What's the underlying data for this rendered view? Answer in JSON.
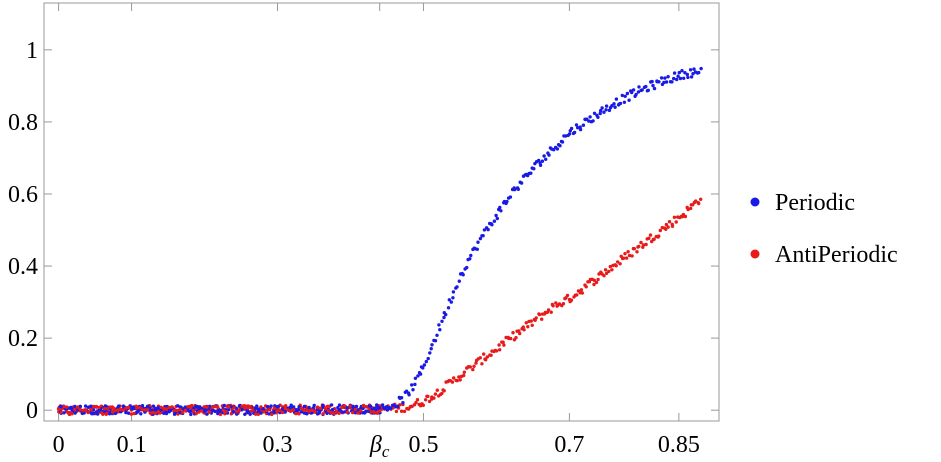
{
  "chart_data": {
    "type": "scatter",
    "title": "",
    "xlabel": "",
    "ylabel": "",
    "xlim": [
      -0.02,
      0.905
    ],
    "ylim": [
      -0.03,
      1.13
    ],
    "x_ticks": [
      {
        "value": 0,
        "label": "0"
      },
      {
        "value": 0.1,
        "label": "0.1"
      },
      {
        "value": 0.3,
        "label": "0.3"
      },
      {
        "value": 0.44,
        "label": "βc",
        "italic": true
      },
      {
        "value": 0.5,
        "label": "0.5"
      },
      {
        "value": 0.7,
        "label": "0.7"
      },
      {
        "value": 0.85,
        "label": "0.85"
      }
    ],
    "y_ticks": [
      {
        "value": 0,
        "label": "0"
      },
      {
        "value": 0.2,
        "label": "0.2"
      },
      {
        "value": 0.4,
        "label": "0.4"
      },
      {
        "value": 0.6,
        "label": "0.6"
      },
      {
        "value": 0.8,
        "label": "0.8"
      },
      {
        "value": 1,
        "label": "1"
      }
    ],
    "legend_position": "right",
    "series": [
      {
        "name": "Periodic",
        "color": "#1a1ae6",
        "x": [
          0,
          0.44,
          0.45,
          0.46,
          0.47,
          0.48,
          0.49,
          0.5,
          0.51,
          0.52,
          0.53,
          0.54,
          0.55,
          0.56,
          0.58,
          0.6,
          0.62,
          0.65,
          0.68,
          0.7,
          0.73,
          0.76,
          0.8,
          0.83,
          0.86,
          0.88
        ],
        "y": [
          0,
          0.004,
          0.008,
          0.015,
          0.028,
          0.05,
          0.08,
          0.12,
          0.17,
          0.22,
          0.27,
          0.32,
          0.37,
          0.41,
          0.48,
          0.54,
          0.6,
          0.67,
          0.73,
          0.77,
          0.81,
          0.85,
          0.89,
          0.915,
          0.935,
          0.94
        ]
      },
      {
        "name": "AntiPeriodic",
        "color": "#e81a1a",
        "x": [
          0,
          0.44,
          0.46,
          0.48,
          0.5,
          0.52,
          0.54,
          0.56,
          0.58,
          0.6,
          0.62,
          0.64,
          0.66,
          0.68,
          0.7,
          0.72,
          0.74,
          0.76,
          0.78,
          0.8,
          0.82,
          0.84,
          0.86,
          0.88
        ],
        "y": [
          0,
          0.003,
          0.005,
          0.01,
          0.025,
          0.05,
          0.08,
          0.11,
          0.14,
          0.17,
          0.2,
          0.23,
          0.26,
          0.29,
          0.31,
          0.34,
          0.37,
          0.4,
          0.43,
          0.46,
          0.49,
          0.52,
          0.55,
          0.59
        ]
      }
    ],
    "noise_amplitude": 0.012,
    "points_per_series": 420
  }
}
